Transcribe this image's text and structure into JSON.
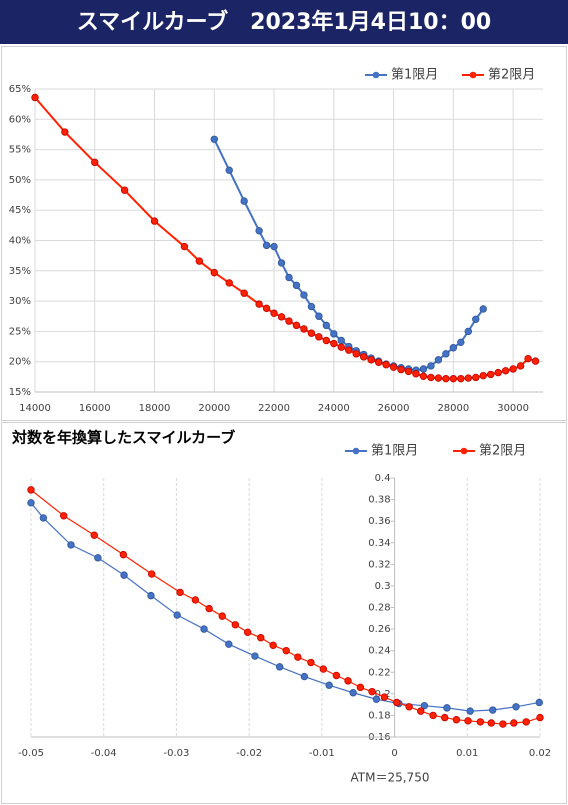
{
  "title": "スマイルカーブ　2023年1月4日10：00",
  "chart_data": [
    {
      "type": "line",
      "legend": "top-right",
      "grid": "both",
      "xlim": [
        14000,
        31000
      ],
      "xticks": [
        14000,
        16000,
        18000,
        20000,
        22000,
        24000,
        26000,
        28000,
        30000
      ],
      "ylim": [
        15,
        65
      ],
      "yticks": [
        {
          "value": 15,
          "label": "15%"
        },
        {
          "value": 20,
          "label": "20%"
        },
        {
          "value": 25,
          "label": "25%"
        },
        {
          "value": 30,
          "label": "30%"
        },
        {
          "value": 35,
          "label": "35%"
        },
        {
          "value": 40,
          "label": "40%"
        },
        {
          "value": 45,
          "label": "45%"
        },
        {
          "value": 50,
          "label": "50%"
        },
        {
          "value": 55,
          "label": "55%"
        },
        {
          "value": 60,
          "label": "60%"
        },
        {
          "value": 65,
          "label": "65%"
        }
      ],
      "series": [
        {
          "name": "第1限月",
          "color": "#4472c4",
          "x": [
            20000,
            20500,
            21000,
            21500,
            21750,
            22000,
            22250,
            22500,
            22750,
            23000,
            23250,
            23500,
            23750,
            24000,
            24250,
            24500,
            24750,
            25000,
            25250,
            25500,
            25750,
            26000,
            26250,
            26500,
            26750,
            27000,
            27250,
            27500,
            27750,
            28000,
            28250,
            28500,
            28750,
            29000
          ],
          "values": [
            56.7,
            51.6,
            46.5,
            41.6,
            39.2,
            39.0,
            36.3,
            33.9,
            32.6,
            31.0,
            29.1,
            27.5,
            26.0,
            24.6,
            23.5,
            22.5,
            21.8,
            21.2,
            20.6,
            20.1,
            19.6,
            19.3,
            19.0,
            18.8,
            18.6,
            18.8,
            19.3,
            20.3,
            21.3,
            22.3,
            23.2,
            25.0,
            27.0,
            28.7
          ]
        },
        {
          "name": "第2限月",
          "color": "#ff2200",
          "x": [
            14000,
            15000,
            16000,
            17000,
            18000,
            19000,
            19500,
            20000,
            20500,
            21000,
            21500,
            21750,
            22000,
            22250,
            22500,
            22750,
            23000,
            23250,
            23500,
            23750,
            24000,
            24250,
            24500,
            24750,
            25000,
            25250,
            25500,
            25750,
            26000,
            26250,
            26500,
            26750,
            27000,
            27250,
            27500,
            27750,
            28000,
            28250,
            28500,
            28750,
            29000,
            29250,
            29500,
            29750,
            30000,
            30250,
            30500,
            30750
          ],
          "values": [
            63.6,
            57.9,
            52.9,
            48.3,
            43.2,
            39.0,
            36.6,
            34.7,
            33.0,
            31.3,
            29.5,
            28.8,
            28.0,
            27.4,
            26.7,
            26.0,
            25.4,
            24.7,
            24.1,
            23.5,
            23.0,
            22.4,
            21.9,
            21.3,
            20.8,
            20.3,
            19.9,
            19.5,
            19.1,
            18.7,
            18.4,
            18.0,
            17.6,
            17.4,
            17.3,
            17.2,
            17.2,
            17.2,
            17.3,
            17.4,
            17.7,
            17.9,
            18.2,
            18.5,
            18.8,
            19.3,
            20.5,
            20.1
          ]
        }
      ]
    },
    {
      "type": "line",
      "title": "対数を年換算したスマイルカーブ",
      "legend": "top-right",
      "grid": "x",
      "annotation": "ATM＝25,750",
      "xlim": [
        -0.05,
        0.02
      ],
      "xticks": [
        -0.05,
        -0.04,
        -0.03,
        -0.02,
        -0.01,
        0,
        0.01,
        0.02
      ],
      "ylim": [
        0.16,
        0.4
      ],
      "yticks": [
        0.16,
        0.18,
        0.2,
        0.22,
        0.24,
        0.26,
        0.28,
        0.3,
        0.32,
        0.34,
        0.36,
        0.38,
        0.4
      ],
      "series": [
        {
          "name": "第1限月",
          "color": "#4472c4",
          "x": [
            -0.05,
            -0.0483,
            -0.0445,
            -0.0408,
            -0.0372,
            -0.0335,
            -0.0299,
            -0.0262,
            -0.0228,
            -0.0192,
            -0.0158,
            -0.0124,
            -0.009,
            -0.0057,
            -0.0025,
            0.0006,
            0.0041,
            0.0072,
            0.0104,
            0.0135,
            0.0167,
            0.0199
          ],
          "values": [
            0.377,
            0.363,
            0.338,
            0.326,
            0.31,
            0.291,
            0.273,
            0.26,
            0.246,
            0.235,
            0.225,
            0.216,
            0.208,
            0.201,
            0.195,
            0.191,
            0.189,
            0.187,
            0.184,
            0.185,
            0.188,
            0.192
          ]
        },
        {
          "name": "第2限月",
          "color": "#ff2200",
          "x": [
            -0.05,
            -0.0455,
            -0.0413,
            -0.0373,
            -0.0334,
            -0.0295,
            -0.0274,
            -0.0255,
            -0.0237,
            -0.0219,
            -0.0202,
            -0.0184,
            -0.0167,
            -0.0149,
            -0.0133,
            -0.0115,
            -0.0098,
            -0.008,
            -0.0064,
            -0.0047,
            -0.0031,
            -0.0014,
            0.0003,
            0.002,
            0.0036,
            0.0053,
            0.0069,
            0.0085,
            0.0101,
            0.0118,
            0.0133,
            0.0149,
            0.0164,
            0.0181,
            0.02
          ],
          "values": [
            0.389,
            0.365,
            0.347,
            0.329,
            0.311,
            0.294,
            0.287,
            0.279,
            0.272,
            0.264,
            0.257,
            0.252,
            0.245,
            0.24,
            0.234,
            0.229,
            0.223,
            0.217,
            0.212,
            0.206,
            0.202,
            0.197,
            0.192,
            0.188,
            0.184,
            0.18,
            0.178,
            0.176,
            0.175,
            0.174,
            0.173,
            0.172,
            0.173,
            0.174,
            0.178
          ]
        }
      ]
    }
  ]
}
